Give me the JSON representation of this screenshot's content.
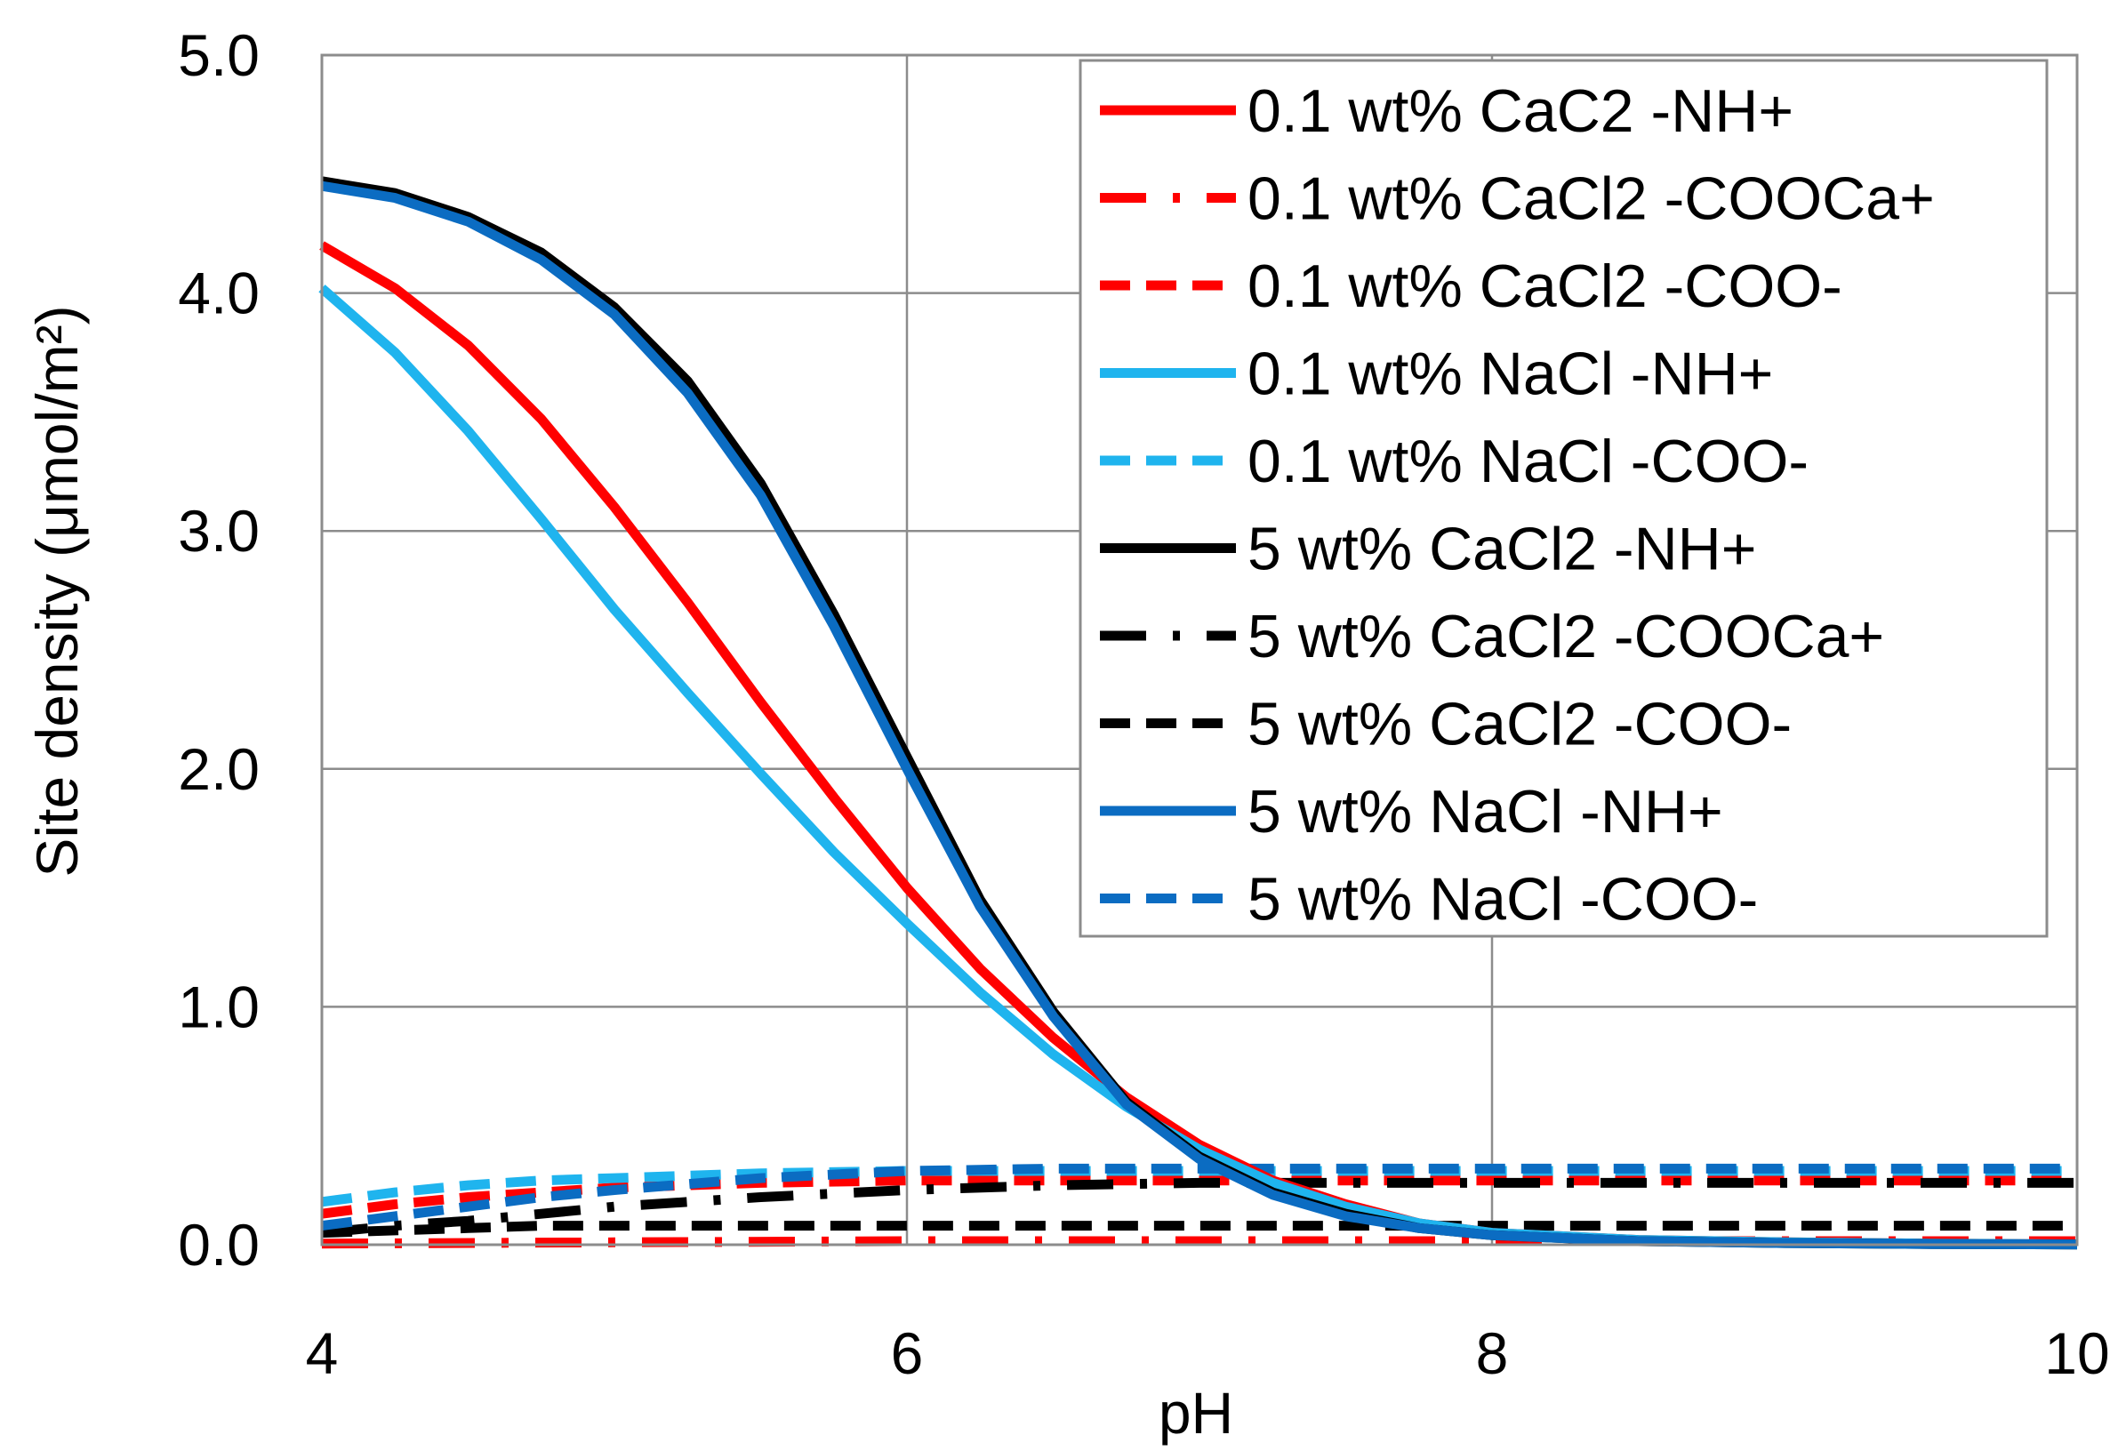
{
  "chart_data": {
    "type": "line",
    "title": "",
    "xlabel": "pH",
    "ylabel": "Site  density (μmol/m²)",
    "xlim": [
      4,
      10
    ],
    "ylim": [
      0,
      5
    ],
    "xticks": [
      4,
      6,
      8,
      10
    ],
    "xtick_labels": [
      "4",
      "6",
      "8",
      "10"
    ],
    "yticks": [
      0,
      1,
      2,
      3,
      4,
      5
    ],
    "ytick_labels": [
      "0.0",
      "1.0",
      "2.0",
      "3.0",
      "4.0",
      "5.0"
    ],
    "grid": true,
    "legend_position": "top-right",
    "series": [
      {
        "name": "0.1 wt% CaC2 -NH+",
        "color": "#ff0000",
        "dash": "solid",
        "x": [
          4,
          4.25,
          4.5,
          4.75,
          5,
          5.25,
          5.5,
          5.75,
          6,
          6.25,
          6.5,
          6.75,
          7,
          7.25,
          7.5,
          7.75,
          8,
          8.5,
          9,
          9.5,
          10
        ],
        "y": [
          4.2,
          4.02,
          3.78,
          3.47,
          3.1,
          2.7,
          2.28,
          1.88,
          1.5,
          1.16,
          0.87,
          0.62,
          0.42,
          0.27,
          0.17,
          0.09,
          0.05,
          0.02,
          0.01,
          0.005,
          0.002
        ]
      },
      {
        "name": "0.1 wt% CaCl2 -COOCa+",
        "color": "#ff0000",
        "dash": "dashdot",
        "x": [
          4,
          5,
          6,
          7,
          8,
          9,
          10
        ],
        "y": [
          0.005,
          0.01,
          0.015,
          0.015,
          0.015,
          0.015,
          0.015
        ]
      },
      {
        "name": "0.1 wt% CaCl2 -COO-",
        "color": "#ff0000",
        "dash": "dash",
        "x": [
          4,
          4.25,
          4.5,
          4.75,
          5,
          5.5,
          6,
          6.5,
          7,
          7.5,
          8,
          9,
          10
        ],
        "y": [
          0.13,
          0.17,
          0.2,
          0.22,
          0.24,
          0.26,
          0.27,
          0.27,
          0.27,
          0.27,
          0.27,
          0.27,
          0.27
        ]
      },
      {
        "name": "0.1 wt% NaCl -NH+",
        "color": "#1fb4ee",
        "dash": "solid",
        "x": [
          4,
          4.25,
          4.5,
          4.75,
          5,
          5.25,
          5.5,
          5.75,
          6,
          6.25,
          6.5,
          6.75,
          7,
          7.25,
          7.5,
          7.75,
          8,
          8.5,
          9,
          9.5,
          10
        ],
        "y": [
          4.02,
          3.75,
          3.42,
          3.05,
          2.67,
          2.32,
          1.98,
          1.65,
          1.35,
          1.06,
          0.8,
          0.58,
          0.4,
          0.26,
          0.16,
          0.09,
          0.05,
          0.02,
          0.01,
          0.005,
          0.002
        ]
      },
      {
        "name": "0.1 wt% NaCl -COO-",
        "color": "#1fb4ee",
        "dash": "dash",
        "x": [
          4,
          4.25,
          4.5,
          4.75,
          5,
          5.5,
          6,
          6.5,
          7,
          7.5,
          8,
          9,
          10
        ],
        "y": [
          0.18,
          0.22,
          0.25,
          0.27,
          0.28,
          0.3,
          0.31,
          0.31,
          0.31,
          0.31,
          0.31,
          0.31,
          0.31
        ]
      },
      {
        "name": "5 wt% CaCl2 -NH+",
        "color": "#000000",
        "dash": "solid",
        "x": [
          4,
          4.25,
          4.5,
          4.75,
          5,
          5.25,
          5.5,
          5.75,
          6,
          6.25,
          6.5,
          6.75,
          7,
          7.25,
          7.5,
          7.75,
          8,
          8.5,
          9,
          9.5,
          10
        ],
        "y": [
          4.47,
          4.42,
          4.32,
          4.17,
          3.94,
          3.63,
          3.2,
          2.65,
          2.05,
          1.45,
          0.98,
          0.6,
          0.37,
          0.22,
          0.13,
          0.07,
          0.04,
          0.015,
          0.007,
          0.003,
          0.001
        ]
      },
      {
        "name": "5 wt% CaCl2 -COOCa+",
        "color": "#000000",
        "dash": "dashdot",
        "x": [
          4,
          4.25,
          4.5,
          4.75,
          5,
          5.5,
          6,
          6.5,
          7,
          7.5,
          8,
          9,
          10
        ],
        "y": [
          0.05,
          0.08,
          0.1,
          0.13,
          0.16,
          0.2,
          0.23,
          0.25,
          0.26,
          0.26,
          0.26,
          0.26,
          0.26
        ]
      },
      {
        "name": "5 wt% CaCl2 -COO-",
        "color": "#000000",
        "dash": "dash",
        "x": [
          4,
          4.25,
          4.5,
          4.75,
          5,
          5.5,
          6,
          6.5,
          7,
          7.5,
          8,
          9,
          10
        ],
        "y": [
          0.05,
          0.06,
          0.07,
          0.08,
          0.08,
          0.08,
          0.08,
          0.08,
          0.08,
          0.08,
          0.08,
          0.08,
          0.08
        ]
      },
      {
        "name": "5 wt% NaCl -NH+",
        "color": "#0b6cc2",
        "dash": "solid",
        "x": [
          4,
          4.25,
          4.5,
          4.75,
          5,
          5.25,
          5.5,
          5.75,
          6,
          6.25,
          6.5,
          6.75,
          7,
          7.25,
          7.5,
          7.75,
          8,
          8.5,
          9,
          9.5,
          10
        ],
        "y": [
          4.45,
          4.4,
          4.3,
          4.14,
          3.91,
          3.58,
          3.15,
          2.6,
          2.0,
          1.42,
          0.96,
          0.59,
          0.36,
          0.21,
          0.12,
          0.07,
          0.04,
          0.015,
          0.007,
          0.003,
          0.001
        ]
      },
      {
        "name": "5 wt% NaCl -COO-",
        "color": "#0b6cc2",
        "dash": "dash",
        "x": [
          4,
          4.25,
          4.5,
          4.75,
          5,
          5.5,
          6,
          6.5,
          7,
          7.5,
          8,
          9,
          10
        ],
        "y": [
          0.08,
          0.12,
          0.16,
          0.2,
          0.23,
          0.28,
          0.31,
          0.32,
          0.32,
          0.32,
          0.32,
          0.32,
          0.32
        ]
      }
    ]
  }
}
